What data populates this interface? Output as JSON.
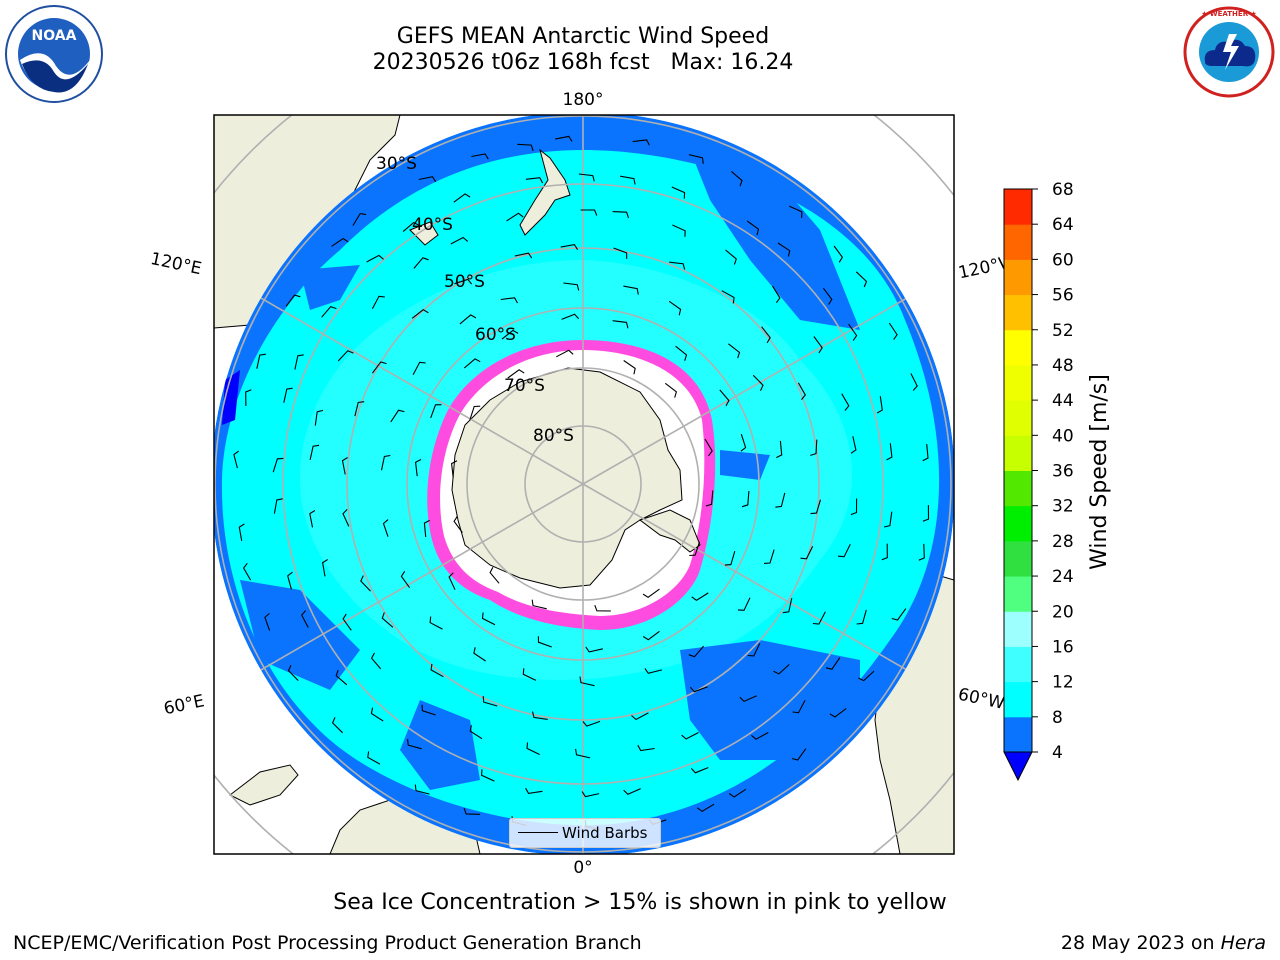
{
  "title": "GEFS MEAN Antarctic Wind Speed",
  "subtitle": "20230526 t06z 168h fcst   Max: 16.24",
  "caption": "Sea Ice Concentration > 15% is shown in pink to yellow",
  "footer_left": "NCEP/EMC/Verification Post Processing Product Generation Branch",
  "footer_date": "28 May 2023 on ",
  "footer_host": "Hera",
  "logos": {
    "noaa": {
      "icon": "noaa-logo",
      "text": "NOAA"
    },
    "nws": {
      "icon": "nws-logo",
      "text": "NATIONAL WEATHER SERVICE"
    }
  },
  "map": {
    "projection": "south-polar-stereographic",
    "lat_labels": [
      "30°S",
      "40°S",
      "50°S",
      "60°S",
      "70°S",
      "80°S"
    ],
    "lon_labels": {
      "top": "180°",
      "bottom": "0°",
      "upper_left": "120°E",
      "upper_right": "120°W",
      "lower_left": "60°E",
      "lower_right": "60°W"
    },
    "legend": "Wind Barbs",
    "colors": {
      "land": "#eeeedd",
      "band_4_8": "#0a74ff",
      "band_8_12": "#00ffff",
      "band_12_16": "#40ffff",
      "sea_ice_edge": "#ff4ce0"
    }
  },
  "colorbar": {
    "label": "Wind Speed [m/s]",
    "ticks": [
      "4",
      "8",
      "12",
      "16",
      "20",
      "24",
      "28",
      "32",
      "36",
      "40",
      "44",
      "48",
      "52",
      "56",
      "60",
      "64",
      "68"
    ],
    "colors": [
      "#0a74ff",
      "#00ffff",
      "#40ffff",
      "#9effff",
      "#50ff80",
      "#30e040",
      "#00ee00",
      "#52e800",
      "#c8ff00",
      "#e0ff00",
      "#f0ff00",
      "#ffff00",
      "#ffc000",
      "#ff9900",
      "#ff6600",
      "#ff2a00"
    ],
    "extend_color": "#0000ff"
  }
}
